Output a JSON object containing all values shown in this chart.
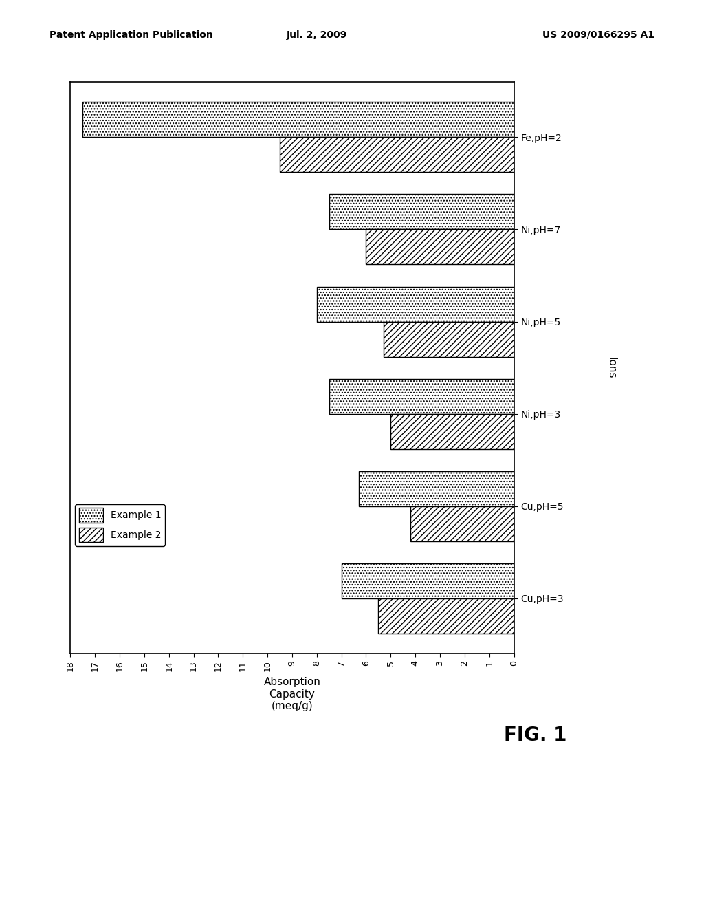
{
  "categories": [
    "Cu,pH=3",
    "Cu,pH=5",
    "Ni,pH=3",
    "Ni,pH=5",
    "Ni,pH=7",
    "Fe,pH=2"
  ],
  "example1_values": [
    7.0,
    6.3,
    7.5,
    8.0,
    7.5,
    17.5
  ],
  "example2_values": [
    5.5,
    4.2,
    5.0,
    5.3,
    6.0,
    9.5
  ],
  "xlim": [
    0,
    18
  ],
  "xticks": [
    0,
    1,
    2,
    3,
    4,
    5,
    6,
    7,
    8,
    9,
    10,
    11,
    12,
    13,
    14,
    15,
    16,
    17,
    18
  ],
  "xlabel": "Absorption\nCapacity\n(meq/g)",
  "ylabel": "Ions",
  "legend_labels": [
    "Example 1",
    "Example 2"
  ],
  "fig_title": "FIG. 1",
  "header_left": "Patent Application Publication",
  "header_center": "Jul. 2, 2009",
  "header_right": "US 2009/0166295 A1",
  "bar_width": 0.38,
  "background_color": "#ffffff"
}
